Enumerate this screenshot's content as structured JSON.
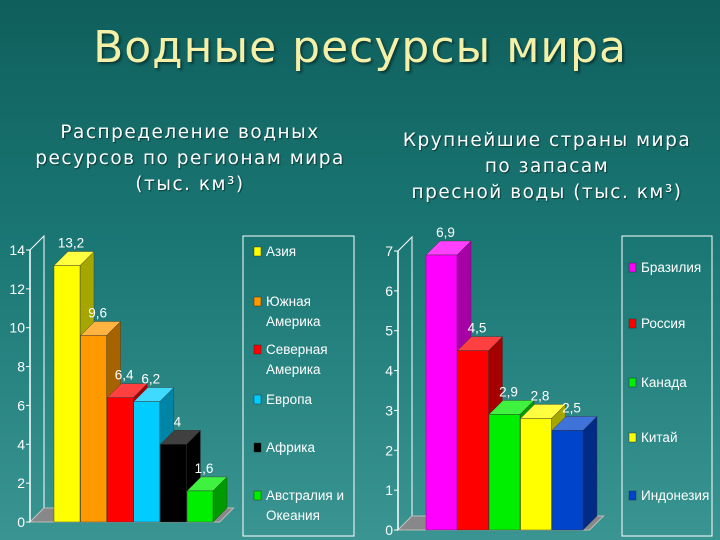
{
  "page_title": "Водные ресурсы мира",
  "colors": {
    "background": "#1a7774",
    "title": "#f4f0a8"
  },
  "chart_data": [
    {
      "type": "bar",
      "title_lines": [
        "Распределение водных",
        "ресурсов по регионам мира",
        "(тыс. км³)"
      ],
      "categories": [
        "Азия",
        "Южная Америка",
        "Северная Америка",
        "Европа",
        "Африка",
        "Австралия и Океания"
      ],
      "legend_lines": [
        [
          "Азия"
        ],
        [
          "Южная",
          "Америка"
        ],
        [
          "Северная",
          "Америка"
        ],
        [
          "Европа"
        ],
        [
          "Африка"
        ],
        [
          "Австралия и",
          "Океания"
        ]
      ],
      "values": [
        13.2,
        9.6,
        6.4,
        6.2,
        4,
        1.6
      ],
      "data_labels": [
        "13,2",
        "9,6",
        "6,4",
        "6,2",
        "4",
        "1,6"
      ],
      "colors": [
        "#ffff00",
        "#ff9900",
        "#ff0000",
        "#00ccff",
        "#000000",
        "#00ee00"
      ],
      "ylim": [
        0,
        14
      ],
      "yticks": [
        0,
        2,
        4,
        6,
        8,
        10,
        12,
        14
      ],
      "legend_position": "right",
      "grid": false
    },
    {
      "type": "bar",
      "title_lines": [
        "Крупнейшие страны мира",
        "по запасам",
        "пресной воды  (тыс. км³)"
      ],
      "categories": [
        "Бразилия",
        "Россия",
        "Канада",
        "Китай",
        "Индонезия"
      ],
      "legend_lines": [
        [
          "Бразилия"
        ],
        [
          "Россия"
        ],
        [
          "Канада"
        ],
        [
          "Китай"
        ],
        [
          "Индонезия"
        ]
      ],
      "values": [
        6.9,
        4.5,
        2.9,
        2.8,
        2.5
      ],
      "data_labels": [
        "6,9",
        "4,5",
        "2,9",
        "2,8",
        "2,5"
      ],
      "colors": [
        "#ff00ff",
        "#ff0000",
        "#00ee00",
        "#ffff00",
        "#0044cc"
      ],
      "ylim": [
        0,
        7
      ],
      "yticks": [
        0,
        1,
        2,
        3,
        4,
        5,
        6,
        7
      ],
      "legend_position": "right",
      "grid": false
    }
  ]
}
